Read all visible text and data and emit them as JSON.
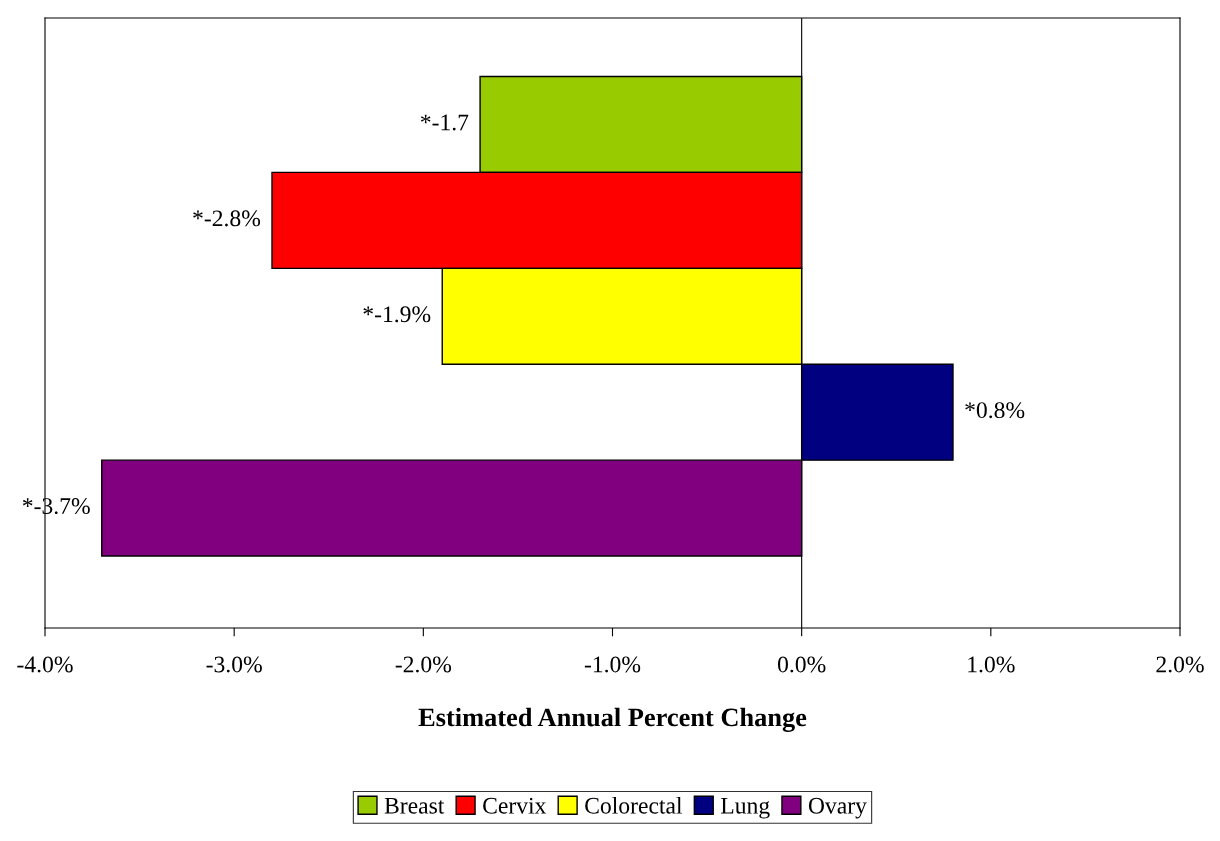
{
  "chart_data": {
    "type": "bar",
    "orientation": "horizontal",
    "xlabel": "Estimated Annual Percent Change",
    "categories": [
      null
    ],
    "series": [
      {
        "name": "Breast",
        "color": "#99cc00",
        "values": [
          -1.7
        ],
        "value_labels": [
          "*-1.7"
        ]
      },
      {
        "name": "Cervix",
        "color": "#ff0000",
        "values": [
          -2.8
        ],
        "value_labels": [
          "*-2.8%"
        ]
      },
      {
        "name": "Colorectal",
        "color": "#ffff00",
        "values": [
          -1.9
        ],
        "value_labels": [
          "*-1.9%"
        ]
      },
      {
        "name": "Lung",
        "color": "#000080",
        "values": [
          0.8
        ],
        "value_labels": [
          "*0.8%"
        ]
      },
      {
        "name": "Ovary",
        "color": "#800080",
        "values": [
          -3.7
        ],
        "value_labels": [
          "*-3.7%"
        ]
      }
    ],
    "xlim": [
      -4,
      2
    ],
    "xticks": [
      {
        "value": -4,
        "label": "-4.0%"
      },
      {
        "value": -3,
        "label": "-3.0%"
      },
      {
        "value": -2,
        "label": "-2.0%"
      },
      {
        "value": -1,
        "label": "-1.0%"
      },
      {
        "value": 0,
        "label": "0.0%"
      },
      {
        "value": 1,
        "label": "1.0%"
      },
      {
        "value": 2,
        "label": "2.0%"
      }
    ],
    "ref_lines": [
      {
        "axis": "x",
        "value": 0
      }
    ],
    "tick_labels": "x",
    "grid": false,
    "legend": "bottom"
  }
}
